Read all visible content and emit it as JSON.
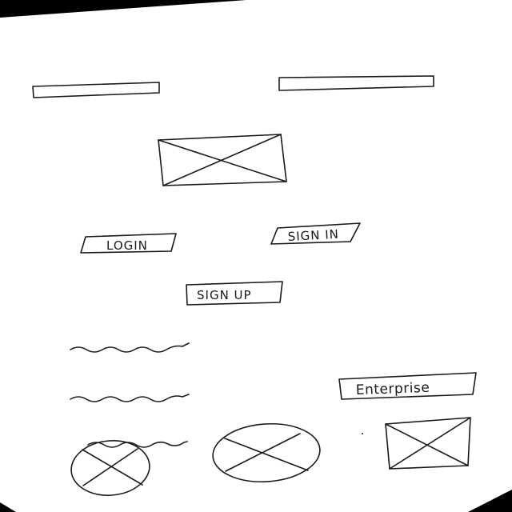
{
  "buttons": {
    "login": "LOGIN",
    "sign_in": "SIGN IN",
    "sign_up": "SIGN UP",
    "enterprise": "Enterprise"
  },
  "colors": {
    "paper": "#ffffff",
    "ink": "#1a1a1a",
    "frame": "#000000"
  }
}
